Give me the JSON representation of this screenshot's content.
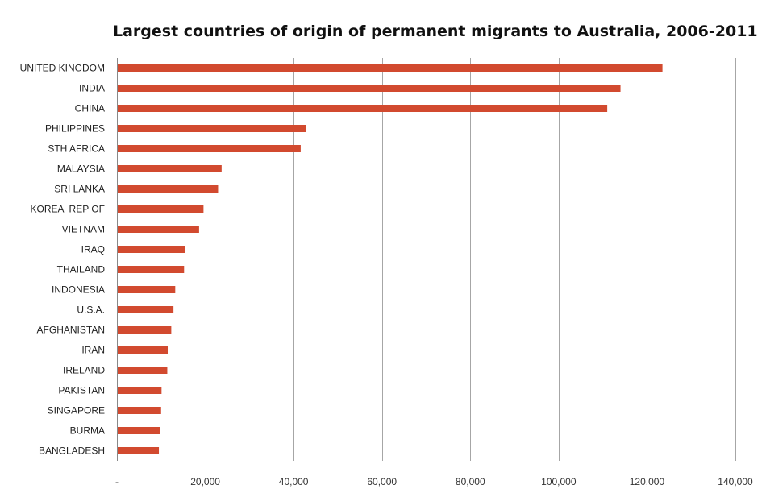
{
  "chart_data": {
    "type": "bar",
    "orientation": "horizontal",
    "title": "Largest countries of origin of permanent migrants to Australia, 2006-2011",
    "xlabel": "",
    "ylabel": "",
    "categories": [
      "UNITED KINGDOM",
      "INDIA",
      "CHINA",
      "PHILIPPINES",
      "STH AFRICA",
      "MALAYSIA",
      "SRI LANKA",
      "KOREA  REP OF",
      "VIETNAM",
      "IRAQ",
      "THAILAND",
      "INDONESIA",
      "U.S.A.",
      "AFGHANISTAN",
      "IRAN",
      "IRELAND",
      "PAKISTAN",
      "SINGAPORE",
      "BURMA",
      "BANGLADESH"
    ],
    "values": [
      123500,
      114000,
      111000,
      42800,
      41600,
      23700,
      22900,
      19600,
      18600,
      15400,
      15200,
      13200,
      12800,
      12300,
      11500,
      11400,
      10100,
      10000,
      9800,
      9500
    ],
    "xlim": [
      0,
      140000
    ],
    "xticks": [
      0,
      20000,
      40000,
      60000,
      80000,
      100000,
      120000,
      140000
    ],
    "xtick_labels": [
      "-",
      "20,000",
      "40,000",
      "60,000",
      "80,000",
      "100,000",
      "120,000",
      "140,000"
    ],
    "grid": "vertical",
    "legend": "none",
    "bar_color": "#D24A2F",
    "grid_color": "#A6A6A6"
  }
}
